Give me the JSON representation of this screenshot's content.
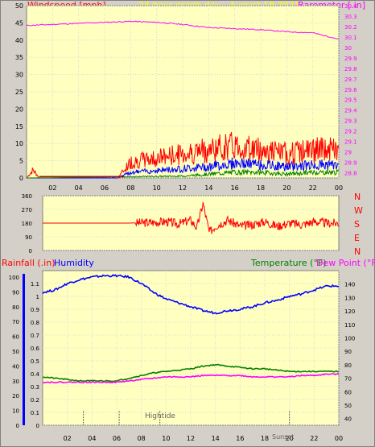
{
  "header": {
    "windspeed_label": "Windspeed [mph]",
    "title": "24 hour graph day - August 18 2021",
    "barometer_label": "Barometer [.in]"
  },
  "panel3_labels": {
    "rainfall": "Rainfall (.in)",
    "humidity": "Humidity",
    "temperature": "Temperature (°F)",
    "dewpoint": "Dew Point (°F)"
  },
  "events": {
    "hightide": "Hightide",
    "sunset": "Sunset"
  },
  "colors": {
    "background": "#d4d0c8",
    "plot": "#ffffc0",
    "wind_avg": "#c00000",
    "wind_gust": "#ff0000",
    "wind_blue": "#0000ff",
    "wind_green": "#008000",
    "barometer": "#ff00ff",
    "direction": "#ff0000",
    "humidity": "#0000ff",
    "temperature": "#008000",
    "dewpoint": "#ff00ff",
    "rain": "#0000ff"
  },
  "chart_data": [
    {
      "type": "line",
      "title": "24 hour graph day - August 18 2021",
      "xlabel": "",
      "ylabel": "Windspeed [mph]",
      "y2label": "Barometer [.in]",
      "grid": true,
      "x_ticks": [
        "02",
        "04",
        "06",
        "08",
        "10",
        "12",
        "14",
        "16",
        "18",
        "20",
        "22",
        "00"
      ],
      "xlim": [
        0,
        24
      ],
      "ylim": [
        0,
        50
      ],
      "y_ticks": [
        0,
        5,
        10,
        15,
        20,
        25,
        30,
        35,
        40,
        45,
        50
      ],
      "y2lim": [
        28.75,
        30.4
      ],
      "y2_ticks": [
        "28.8",
        "28.9",
        "29",
        "29.1",
        "29.2",
        "29.3",
        "29.4",
        "29.5",
        "29.6",
        "29.7",
        "29.8",
        "29.9",
        "30",
        "30.1",
        "30.2",
        "30.3",
        "30.4"
      ],
      "series": [
        {
          "axis": "y2",
          "x": [
            0,
            2,
            4,
            6,
            8,
            10,
            12,
            14,
            16,
            18,
            20,
            22,
            24
          ],
          "values": [
            30.21,
            30.22,
            30.23,
            30.24,
            30.25,
            30.24,
            30.22,
            30.19,
            30.18,
            30.17,
            30.15,
            30.14,
            30.08
          ]
        },
        {
          "axis": "y",
          "x": [
            0,
            0.5,
            1,
            2,
            4,
            6,
            7,
            8,
            10,
            12,
            14,
            16,
            18,
            20,
            22,
            24
          ],
          "values": [
            0,
            2,
            0,
            0,
            0,
            0,
            0,
            4,
            5,
            6,
            7,
            8,
            7,
            6,
            7,
            7
          ]
        },
        {
          "axis": "y",
          "x": [
            0,
            7,
            8,
            10,
            12,
            14,
            16,
            18,
            20,
            22,
            24
          ],
          "values": [
            0,
            0,
            1.5,
            2,
            2.5,
            3,
            4,
            3.5,
            3,
            3.5,
            3.5
          ]
        },
        {
          "axis": "y",
          "x": [
            0,
            12,
            14,
            16,
            18,
            20,
            22,
            24
          ],
          "values": [
            0,
            0.5,
            1,
            1.5,
            1.5,
            1,
            1.5,
            1.5
          ]
        }
      ]
    },
    {
      "type": "line",
      "ylabel": "",
      "ylim": [
        0,
        360
      ],
      "y_ticks": [
        0,
        90,
        180,
        270,
        360
      ],
      "direction_labels": [
        "N",
        "W",
        "S",
        "E",
        "N"
      ],
      "series": [
        {
          "x": [
            0,
            2,
            4,
            6,
            7,
            8,
            9,
            10,
            11,
            12,
            12.5,
            13,
            13.5,
            14,
            15,
            16,
            17,
            18,
            19,
            20,
            21,
            22,
            23,
            24
          ],
          "values": [
            180,
            180,
            180,
            180,
            180,
            182,
            185,
            190,
            175,
            200,
            150,
            310,
            120,
            160,
            200,
            160,
            170,
            190,
            160,
            180,
            170,
            190,
            180,
            180
          ]
        }
      ]
    },
    {
      "type": "line",
      "ylabel": "Rainfall (.in)",
      "grid": true,
      "x_ticks": [
        "02",
        "04",
        "06",
        "08",
        "10",
        "12",
        "14",
        "16",
        "18",
        "20",
        "22",
        "00"
      ],
      "rain_lim": [
        0,
        100
      ],
      "rain_ticks": [
        0,
        10,
        20,
        30,
        40,
        50,
        60,
        70,
        80,
        90,
        100
      ],
      "humidity_lim": [
        0,
        1.2
      ],
      "humidity_ticks": [
        "0",
        "0.1",
        "0.2",
        "0.3",
        "0.4",
        "0.5",
        "0.6",
        "0.7",
        "0.8",
        "0.9",
        "1",
        "1.1"
      ],
      "temp_lim": [
        35,
        150
      ],
      "temp_ticks": [
        40,
        50,
        60,
        70,
        80,
        90,
        100,
        110,
        120,
        130,
        140
      ],
      "series": [
        {
          "name": "Humidity",
          "axis": "humidity",
          "x": [
            0,
            1,
            2,
            3,
            4,
            5,
            6,
            7,
            8,
            9,
            10,
            11,
            12,
            13,
            14,
            15,
            16,
            17,
            18,
            19,
            20,
            21,
            22,
            23,
            24
          ],
          "values": [
            1.03,
            1.05,
            1.1,
            1.13,
            1.15,
            1.16,
            1.16,
            1.15,
            1.1,
            1.03,
            0.98,
            0.95,
            0.92,
            0.89,
            0.87,
            0.89,
            0.9,
            0.92,
            0.95,
            0.97,
            1.0,
            1.02,
            1.05,
            1.08,
            1.08
          ]
        },
        {
          "name": "Temperature (°F)",
          "axis": "temp",
          "x": [
            0,
            1,
            2,
            3,
            4,
            5,
            6,
            7,
            8,
            9,
            10,
            11,
            12,
            13,
            14,
            15,
            16,
            17,
            18,
            19,
            20,
            21,
            22,
            23,
            24
          ],
          "values": [
            71,
            70,
            69,
            68,
            68,
            68,
            68,
            70,
            72,
            74,
            75,
            76,
            77,
            79,
            80,
            79,
            78,
            77,
            77,
            76,
            75,
            75,
            75,
            75,
            75
          ]
        },
        {
          "name": "Dew Point (°F)",
          "axis": "temp",
          "x": [
            0,
            1,
            2,
            3,
            4,
            5,
            6,
            7,
            8,
            9,
            10,
            11,
            12,
            13,
            14,
            15,
            16,
            17,
            18,
            19,
            20,
            21,
            22,
            23,
            24
          ],
          "values": [
            67,
            67,
            67,
            67,
            67,
            67,
            67,
            68,
            69,
            70,
            71,
            71,
            71,
            72,
            72,
            72,
            72,
            71,
            71,
            71,
            71,
            72,
            72,
            73,
            73
          ]
        }
      ],
      "markers": [
        {
          "label": "",
          "x": 3.3
        },
        {
          "label": "",
          "x": 6.2
        },
        {
          "label": "Hightide",
          "x": 9.5
        },
        {
          "label": "Sunset",
          "x": 20.0
        }
      ]
    }
  ]
}
